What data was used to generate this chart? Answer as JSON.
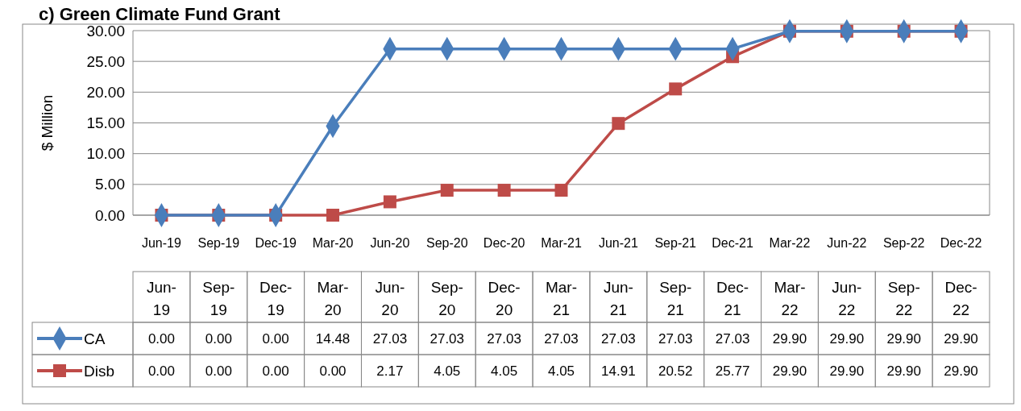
{
  "chart_data": {
    "type": "line",
    "title": "c) Green Climate Fund Grant",
    "ylabel": "$ Million",
    "categories": [
      "Jun-19",
      "Sep-19",
      "Dec-19",
      "Mar-20",
      "Jun-20",
      "Sep-20",
      "Dec-20",
      "Mar-21",
      "Jun-21",
      "Sep-21",
      "Dec-21",
      "Mar-22",
      "Jun-22",
      "Sep-22",
      "Dec-22"
    ],
    "series": [
      {
        "name": "CA",
        "color": "#4a7ebb",
        "marker": "diamond",
        "values": [
          0,
          0,
          0,
          14.48,
          27.03,
          27.03,
          27.03,
          27.03,
          27.03,
          27.03,
          27.03,
          29.9,
          29.9,
          29.9,
          29.9
        ],
        "value_labels": [
          "0.00",
          "0.00",
          "0.00",
          "14.48",
          "27.03",
          "27.03",
          "27.03",
          "27.03",
          "27.03",
          "27.03",
          "27.03",
          "29.90",
          "29.90",
          "29.90",
          "29.90"
        ]
      },
      {
        "name": "Disb",
        "color": "#be4b48",
        "marker": "square",
        "values": [
          0,
          0,
          0,
          0,
          2.17,
          4.05,
          4.05,
          4.05,
          14.91,
          20.52,
          25.77,
          29.9,
          29.9,
          29.9,
          29.9
        ],
        "value_labels": [
          "0.00",
          "0.00",
          "0.00",
          "0.00",
          "2.17",
          "4.05",
          "4.05",
          "4.05",
          "14.91",
          "20.52",
          "25.77",
          "29.90",
          "29.90",
          "29.90",
          "29.90"
        ]
      }
    ],
    "ylim": [
      0,
      30
    ],
    "yticks": [
      {
        "value": 0,
        "label": "0.00"
      },
      {
        "value": 5,
        "label": "5.00"
      },
      {
        "value": 10,
        "label": "10.00"
      },
      {
        "value": 15,
        "label": "15.00"
      },
      {
        "value": 20,
        "label": "20.00"
      },
      {
        "value": 25,
        "label": "25.00"
      },
      {
        "value": 30,
        "label": "30.00"
      }
    ],
    "grid": "y",
    "legend": "bottom"
  }
}
